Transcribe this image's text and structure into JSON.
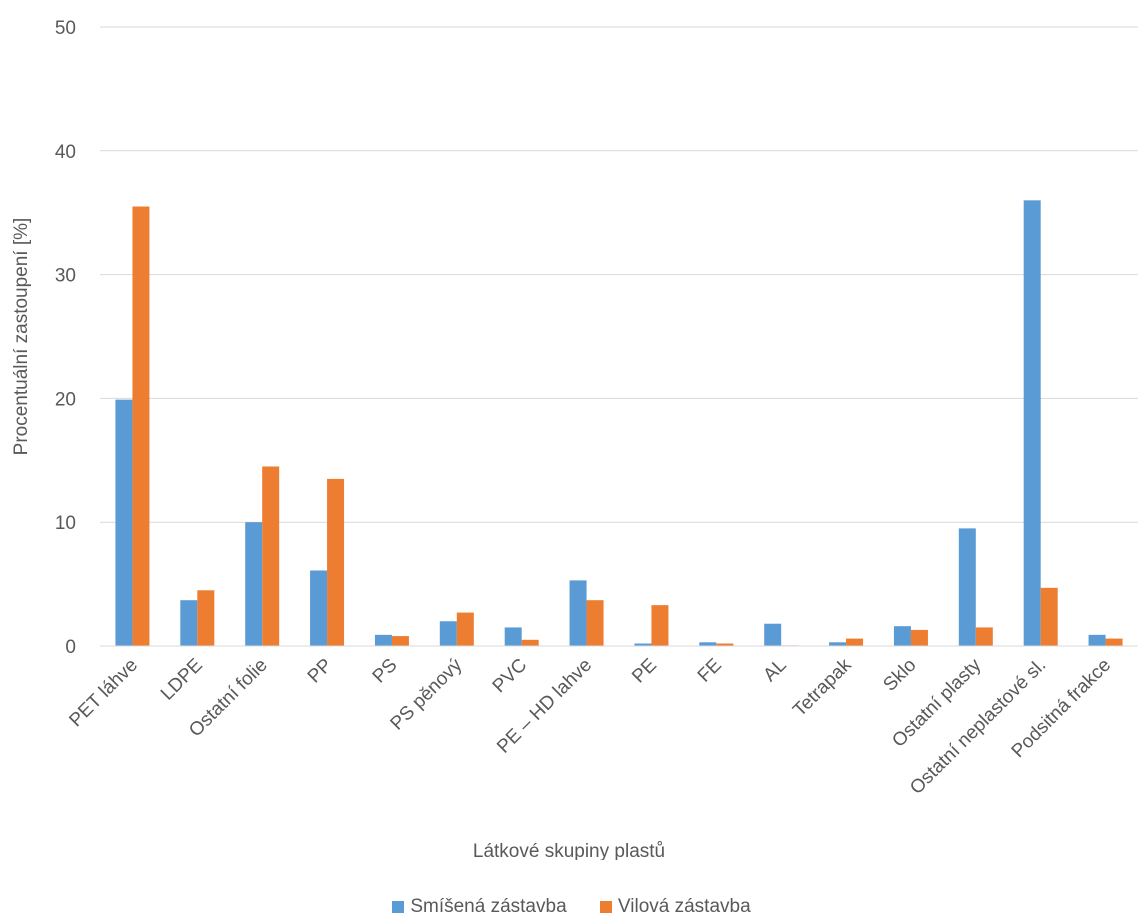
{
  "chart_data": {
    "type": "bar",
    "xlabel": "Látkové skupiny plastů",
    "ylabel": "Procentuální zastoupení [%]",
    "ylim": [
      0,
      50
    ],
    "yticks": [
      0,
      10,
      20,
      30,
      40,
      50
    ],
    "grid": true,
    "legend_position": "bottom",
    "categories": [
      "PET láhve",
      "LDPE",
      "Ostatní folie",
      "PP",
      "PS",
      "PS pěnový",
      "PVC",
      "PE – HD lahve",
      "PE",
      "FE",
      "AL",
      "Tetrapak",
      "Sklo",
      "Ostatní plasty",
      "Ostatní neplastové sl.",
      "Podsitná frakce"
    ],
    "series": [
      {
        "name": "Smíšená zástavba",
        "color": "#5b9bd5",
        "values": [
          19.9,
          3.7,
          10.0,
          6.1,
          0.9,
          2.0,
          1.5,
          5.3,
          0.2,
          0.3,
          1.8,
          0.3,
          1.6,
          9.5,
          36.0,
          0.9
        ]
      },
      {
        "name": "Vilová zástavba",
        "color": "#ed7d31",
        "values": [
          35.5,
          4.5,
          14.5,
          13.5,
          0.8,
          2.7,
          0.5,
          3.7,
          3.3,
          0.2,
          0.05,
          0.6,
          1.3,
          1.5,
          4.7,
          0.6
        ]
      }
    ]
  },
  "colors": {
    "gridline": "#d9d9d9",
    "text": "#595959"
  }
}
